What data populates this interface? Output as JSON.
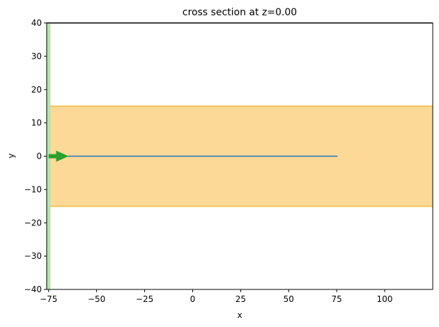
{
  "chart_data": {
    "type": "line",
    "title": "cross section at z=0.00",
    "xlabel": "x",
    "ylabel": "y",
    "xlim": [
      -76,
      125
    ],
    "ylim": [
      -40,
      40
    ],
    "xticks": [
      -75,
      -50,
      -25,
      0,
      25,
      50,
      75,
      100
    ],
    "yticks": [
      -40,
      -30,
      -20,
      -10,
      0,
      10,
      20,
      30,
      40
    ],
    "xtick_labels": [
      "−75",
      "−50",
      "−25",
      "0",
      "25",
      "50",
      "75",
      "100"
    ],
    "ytick_labels": [
      "−40",
      "−30",
      "−20",
      "−10",
      "0",
      "10",
      "20",
      "30",
      "40"
    ],
    "grid": false,
    "regions": [
      {
        "kind": "horizontal-band",
        "y": [
          -15,
          15
        ],
        "x": [
          -76,
          125
        ],
        "fill": "#fdd998",
        "edge": "#f5c86a"
      },
      {
        "kind": "vertical-band",
        "x": [
          -76,
          -74
        ],
        "y": [
          -40,
          40
        ],
        "fill": "#b5e3b0"
      }
    ],
    "series": [
      {
        "x": [
          -65,
          75.5
        ],
        "y": [
          0,
          0
        ],
        "color": "#1f77b4"
      }
    ],
    "arrow": {
      "x": [
        -75,
        -66
      ],
      "y": [
        0,
        0
      ],
      "color": "#2ca02c"
    },
    "top_line": {
      "y": 40,
      "color": "#808080"
    }
  }
}
